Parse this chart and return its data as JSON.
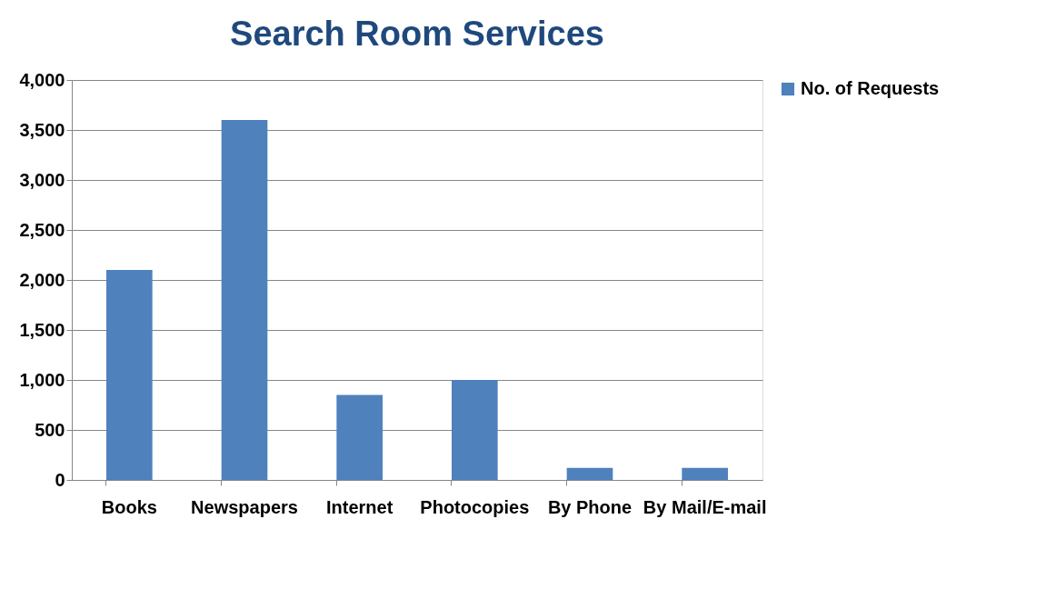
{
  "chart_data": {
    "type": "bar",
    "title": "Search Room Services",
    "categories": [
      "Books",
      "Newspapers",
      "Internet",
      "Photocopies",
      "By Phone",
      "By Mail/E-mail"
    ],
    "series": [
      {
        "name": "No. of Requests",
        "color": "#4f81bd",
        "values": [
          2100,
          3600,
          850,
          1000,
          120,
          120
        ]
      }
    ],
    "ylim": [
      0,
      4000
    ],
    "yticks": [
      {
        "value": 0,
        "label": "0"
      },
      {
        "value": 500,
        "label": "500"
      },
      {
        "value": 1000,
        "label": "1,000"
      },
      {
        "value": 1500,
        "label": "1,500"
      },
      {
        "value": 2000,
        "label": "2,000"
      },
      {
        "value": 2500,
        "label": "2,500"
      },
      {
        "value": 3000,
        "label": "3,000"
      },
      {
        "value": 3500,
        "label": "3,500"
      },
      {
        "value": 4000,
        "label": "4,000"
      }
    ],
    "grid": "y",
    "legend": "right"
  }
}
